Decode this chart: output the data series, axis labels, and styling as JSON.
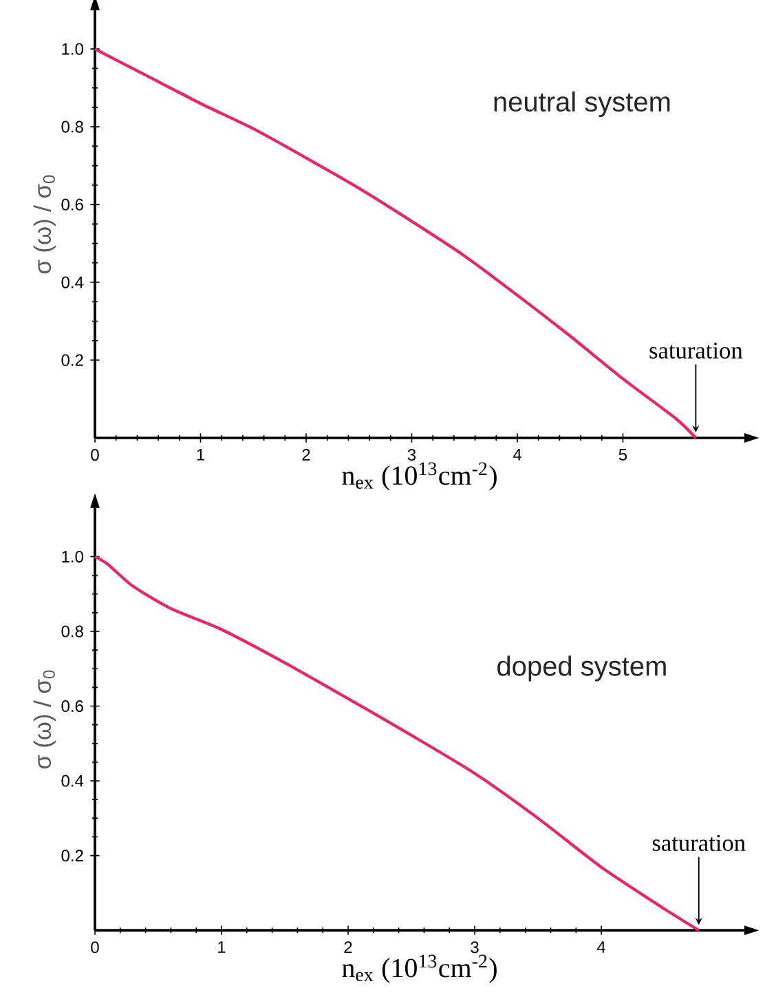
{
  "chart_data": [
    {
      "type": "line",
      "ylabel": "σ (ω) / σ$_{0}$",
      "xlabel": "n$_{ex}$ (10$^{13}$cm$^{-2}$)",
      "x": [
        0,
        0.5,
        1,
        1.5,
        2,
        2.5,
        3,
        3.5,
        4,
        4.5,
        5,
        5.5,
        5.69
      ],
      "values": [
        1.0,
        0.93,
        0.86,
        0.795,
        0.72,
        0.642,
        0.557,
        0.468,
        0.367,
        0.262,
        0.152,
        0.05,
        0
      ],
      "color": "#e8266b",
      "xlim": [
        0,
        6.15
      ],
      "ylim": [
        0,
        1.1
      ],
      "xticks": [
        0,
        1,
        2,
        3,
        4,
        5
      ],
      "yticks": [
        {
          "value": 0.2,
          "label": "0.2"
        },
        {
          "value": 0.4,
          "label": "0.4"
        },
        {
          "value": 0.6,
          "label": "0.6"
        },
        {
          "value": 0.8,
          "label": "0.8"
        },
        {
          "value": 1,
          "label": "1.0"
        }
      ],
      "annotations": [
        "neutral system",
        {
          "text": "saturation",
          "x": 5.69,
          "y": 0
        }
      ]
    },
    {
      "type": "line",
      "ylabel": "σ (ω) / σ$_{0}$",
      "xlabel": "n$_{ex}$ (10$^{13}$cm$^{-2}$)",
      "x": [
        0,
        0.1,
        0.3,
        0.6,
        1,
        1.5,
        2,
        2.5,
        3,
        3.5,
        4,
        4.5,
        4.77
      ],
      "values": [
        1.0,
        0.98,
        0.921,
        0.861,
        0.805,
        0.716,
        0.62,
        0.522,
        0.42,
        0.3,
        0.169,
        0.057,
        0
      ],
      "color": "#e8266b",
      "xlim": [
        0,
        5.13
      ],
      "ylim": [
        0,
        1.13
      ],
      "xticks": [
        0,
        1,
        2,
        3,
        4
      ],
      "yticks": [
        {
          "value": 0.2,
          "label": "0.2"
        },
        {
          "value": 0.4,
          "label": "0.4"
        },
        {
          "value": 0.6,
          "label": "0.6"
        },
        {
          "value": 0.8,
          "label": "0.8"
        },
        {
          "value": 1,
          "label": "1.0"
        }
      ],
      "annotations": [
        "doped system",
        {
          "text": "saturation",
          "x": 4.77,
          "y": 0
        }
      ]
    }
  ]
}
